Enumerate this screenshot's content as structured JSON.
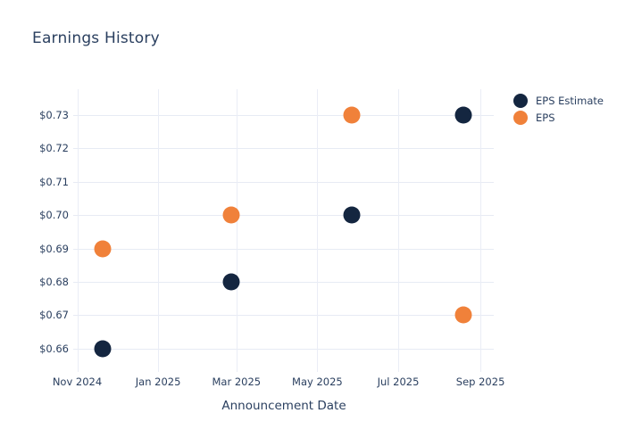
{
  "chart_data": {
    "type": "scatter",
    "title": "Earnings History",
    "xlabel": "Announcement Date",
    "ylabel": "",
    "grid": true,
    "legend": {
      "position": "outside-top-right",
      "entries": [
        "EPS Estimate",
        "EPS"
      ]
    },
    "x_axis": {
      "range": [
        "2024-10-29",
        "2025-09-11"
      ],
      "ticks": [
        {
          "label": "Nov 2024",
          "date": "2024-11-01"
        },
        {
          "label": "Jan 2025",
          "date": "2025-01-01"
        },
        {
          "label": "Mar 2025",
          "date": "2025-03-01"
        },
        {
          "label": "May 2025",
          "date": "2025-05-01"
        },
        {
          "label": "Jul 2025",
          "date": "2025-07-01"
        },
        {
          "label": "Sep 2025",
          "date": "2025-09-01"
        }
      ]
    },
    "y_axis": {
      "range": [
        0.653,
        0.738
      ],
      "ticks": [
        {
          "label": "$0.73",
          "value": 0.73
        },
        {
          "label": "$0.72",
          "value": 0.72
        },
        {
          "label": "$0.71",
          "value": 0.71
        },
        {
          "label": "$0.70",
          "value": 0.7
        },
        {
          "label": "$0.69",
          "value": 0.69
        },
        {
          "label": "$0.68",
          "value": 0.68
        },
        {
          "label": "$0.67",
          "value": 0.67
        },
        {
          "label": "$0.66",
          "value": 0.66
        }
      ]
    },
    "series": [
      {
        "name": "EPS Estimate",
        "color": "#142640",
        "points": [
          {
            "date": "2024-11-20",
            "value": 0.66,
            "label": "$0.66"
          },
          {
            "date": "2025-02-25",
            "value": 0.68,
            "label": "$0.68"
          },
          {
            "date": "2025-05-27",
            "value": 0.7,
            "label": "$0.70"
          },
          {
            "date": "2025-08-19",
            "value": 0.73,
            "label": "$0.73"
          }
        ]
      },
      {
        "name": "EPS",
        "color": "#f0813a",
        "points": [
          {
            "date": "2024-11-20",
            "value": 0.69,
            "label": "$0.69"
          },
          {
            "date": "2025-02-25",
            "value": 0.7,
            "label": "$0.70"
          },
          {
            "date": "2025-05-27",
            "value": 0.73,
            "label": "$0.73"
          },
          {
            "date": "2025-08-19",
            "value": 0.67,
            "label": "$0.67"
          }
        ]
      }
    ],
    "colors": {
      "grid": "#e7ebf4",
      "text": "#2a3f5f",
      "background": "#ffffff",
      "eps_estimate": "#142640",
      "eps": "#f0813a"
    }
  }
}
